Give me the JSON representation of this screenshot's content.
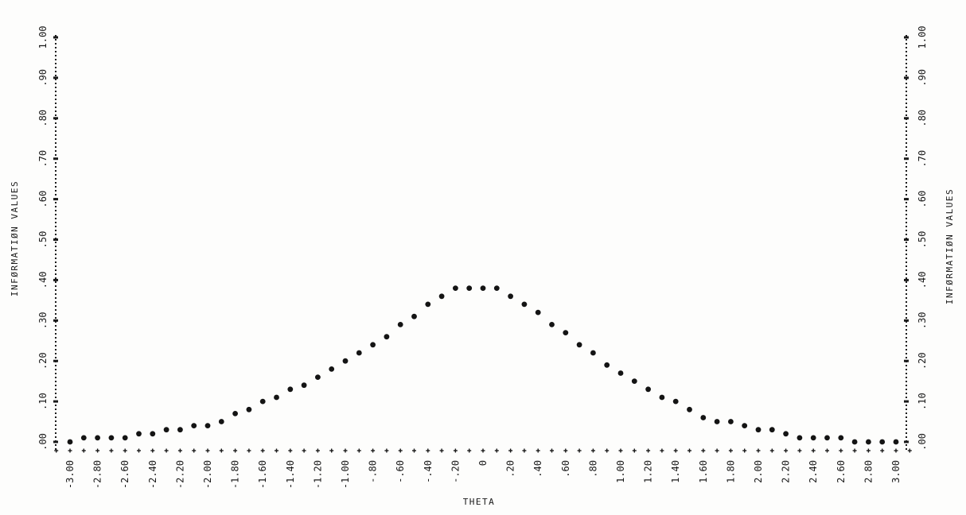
{
  "chart_data": {
    "type": "scatter",
    "title": "",
    "xlabel": "THETA",
    "ylabel_left": "INFØRMATIØN VALUES",
    "ylabel_right": "INFØRMATIØN VALUES",
    "xlim": [
      -3.0,
      3.0
    ],
    "ylim": [
      0.0,
      1.0
    ],
    "grid": false,
    "x_tick_labels": [
      "-3.00",
      "-2.80",
      "-2.60",
      "-2.40",
      "-2.20",
      "-2.00",
      "-1.80",
      "-1.60",
      "-1.40",
      "-1.20",
      "-1.00",
      "-.80",
      "-.60",
      "-.40",
      "-.20",
      "0",
      ".20",
      ".40",
      ".60",
      ".80",
      "1.00",
      "1.20",
      "1.40",
      "1.60",
      "1.80",
      "2.00",
      "2.20",
      "2.40",
      "2.60",
      "2.80",
      "3.00"
    ],
    "y_tick_labels": [
      ".00",
      ".10",
      ".20",
      ".30",
      ".40",
      ".50",
      ".60",
      ".70",
      ".80",
      ".90",
      "1.00"
    ],
    "series": [
      {
        "x": [
          -3.0,
          -2.9,
          -2.8,
          -2.7,
          -2.6,
          -2.5,
          -2.4,
          -2.3,
          -2.2,
          -2.1,
          -2.0,
          -1.9,
          -1.8,
          -1.7,
          -1.6,
          -1.5,
          -1.4,
          -1.3,
          -1.2,
          -1.1,
          -1.0,
          -0.9,
          -0.8,
          -0.7,
          -0.6,
          -0.5,
          -0.4,
          -0.3,
          -0.2,
          -0.1,
          0.0,
          0.1,
          0.2,
          0.3,
          0.4,
          0.5,
          0.6,
          0.7,
          0.8,
          0.9,
          1.0,
          1.1,
          1.2,
          1.3,
          1.4,
          1.5,
          1.6,
          1.7,
          1.8,
          1.9,
          2.0,
          2.1,
          2.2,
          2.3,
          2.4,
          2.5,
          2.6,
          2.7,
          2.8,
          2.9,
          3.0
        ],
        "y": [
          0.0,
          0.01,
          0.01,
          0.01,
          0.01,
          0.02,
          0.02,
          0.03,
          0.03,
          0.04,
          0.04,
          0.05,
          0.07,
          0.08,
          0.1,
          0.11,
          0.13,
          0.14,
          0.16,
          0.18,
          0.2,
          0.22,
          0.24,
          0.26,
          0.29,
          0.31,
          0.34,
          0.36,
          0.38,
          0.38,
          0.38,
          0.38,
          0.36,
          0.34,
          0.32,
          0.29,
          0.27,
          0.24,
          0.22,
          0.19,
          0.17,
          0.15,
          0.13,
          0.11,
          0.1,
          0.08,
          0.06,
          0.05,
          0.05,
          0.04,
          0.03,
          0.03,
          0.02,
          0.01,
          0.01,
          0.01,
          0.01,
          0.0,
          0.0,
          0.0,
          0.0
        ]
      }
    ]
  }
}
